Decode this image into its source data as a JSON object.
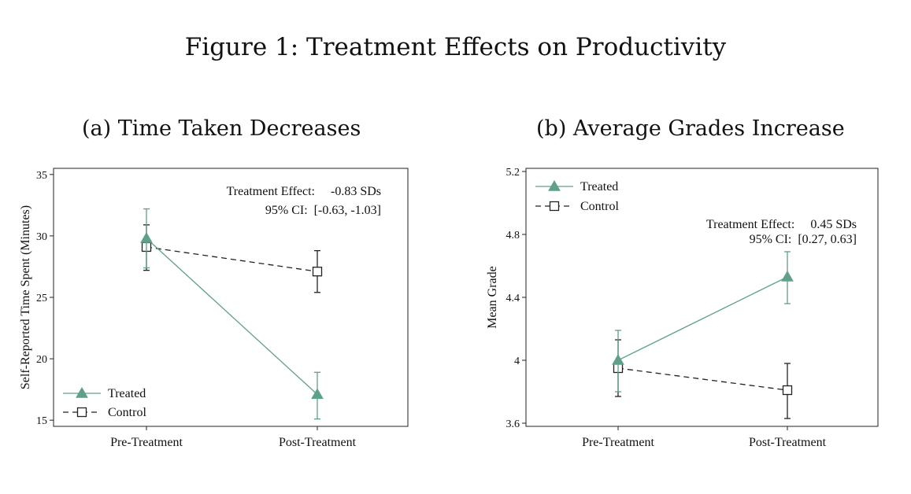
{
  "figure_title": "Figure 1: Treatment Effects on Productivity",
  "colors": {
    "treated": "#5fa08a",
    "control": "#222222"
  },
  "chart_data": [
    {
      "type": "line",
      "title": "(a) Time Taken Decreases",
      "xlabel": "",
      "ylabel": "Self-Reported Time Spent (Minutes)",
      "categories": [
        "Pre-Treatment",
        "Post-Treatment"
      ],
      "ylim": [
        14.5,
        35.5
      ],
      "yticks": [
        15,
        20,
        25,
        30,
        35
      ],
      "ytick_labels": [
        "15",
        "20",
        "25",
        "30",
        "35"
      ],
      "legend_position": "bottom-left",
      "annotation_lines": [
        "Treatment Effect:     -0.83 SDs",
        "95% CI:  [-0.63, -1.03]"
      ],
      "series": [
        {
          "name": "Treated",
          "marker": "triangle",
          "style": "solid",
          "values": [
            29.8,
            17.1
          ],
          "ci_low": [
            27.4,
            15.1
          ],
          "ci_high": [
            32.2,
            18.9
          ]
        },
        {
          "name": "Control",
          "marker": "square",
          "style": "dashed",
          "values": [
            29.1,
            27.1
          ],
          "ci_low": [
            27.2,
            25.4
          ],
          "ci_high": [
            30.9,
            28.8
          ]
        }
      ]
    },
    {
      "type": "line",
      "title": "(b) Average Grades Increase",
      "xlabel": "",
      "ylabel": "Mean Grade",
      "categories": [
        "Pre-Treatment",
        "Post-Treatment"
      ],
      "ylim": [
        3.58,
        5.22
      ],
      "yticks": [
        3.6,
        4.0,
        4.4,
        4.8,
        5.2
      ],
      "ytick_labels": [
        "3.6",
        "4",
        "4.4",
        "4.8",
        "5.2"
      ],
      "legend_position": "top-left",
      "annotation_lines": [
        "Treatment Effect:     0.45 SDs",
        "95% CI:  [0.27, 0.63]"
      ],
      "series": [
        {
          "name": "Treated",
          "marker": "triangle",
          "style": "solid",
          "values": [
            4.0,
            4.53
          ],
          "ci_low": [
            3.8,
            4.36
          ],
          "ci_high": [
            4.19,
            4.69
          ]
        },
        {
          "name": "Control",
          "marker": "square",
          "style": "dashed",
          "values": [
            3.95,
            3.81
          ],
          "ci_low": [
            3.77,
            3.63
          ],
          "ci_high": [
            4.13,
            3.98
          ]
        }
      ]
    }
  ]
}
